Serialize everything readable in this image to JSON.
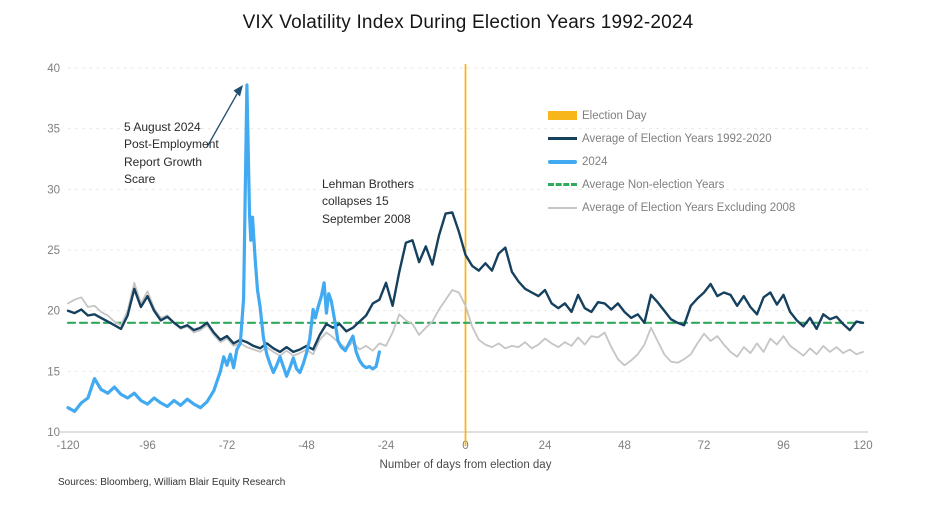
{
  "title": "VIX Volatility Index During Election Years 1992-2024",
  "source": "Sources: Bloomberg, William Blair Equity Research",
  "x_axis": {
    "label": "Number of days from election day"
  },
  "colors": {
    "navy": "#15405e",
    "blue": "#41aaf1",
    "green": "#2fa95c",
    "gray": "#c5c5c5",
    "gold": "#f7b71b",
    "grid": "#e9e9e9",
    "axis": "#c2c2c2",
    "tick_text": "#7f7f7f",
    "arrow": "#1f4e6e"
  },
  "legend": {
    "items": [
      {
        "label": "Election Day",
        "color_key": "gold",
        "swatch": "bar"
      },
      {
        "label": "Average of Election Years 1992-2020",
        "color_key": "navy",
        "swatch": "line"
      },
      {
        "label": "2024",
        "color_key": "blue",
        "swatch": "line-thick"
      },
      {
        "label": "Average Non-election Years",
        "color_key": "green",
        "swatch": "dash"
      },
      {
        "label": "Average of Election Years Excluding 2008",
        "color_key": "gray",
        "swatch": "line-thin"
      }
    ]
  },
  "annotations": {
    "growth_scare": {
      "text": "5 August 2024\nPost-Employment\nReport Growth\nScare"
    },
    "lehman": {
      "text": "Lehman Brothers\ncollapses 15\nSeptember 2008"
    }
  },
  "chart_data": {
    "type": "line",
    "title": "VIX Volatility Index During Election Years 1992-2024",
    "xlabel": "Number of days from election day",
    "ylabel": "",
    "xlim": [
      -120,
      120
    ],
    "ylim": [
      10,
      40
    ],
    "x_ticks": [
      -120,
      -96,
      -72,
      -48,
      -24,
      0,
      24,
      48,
      72,
      96,
      120
    ],
    "y_ticks": [
      10,
      15,
      20,
      25,
      30,
      35,
      40
    ],
    "grid": "horizontal-dashed",
    "legend_position": "upper-right-inside",
    "election_day_x": 0,
    "series": [
      {
        "name": "Average Non-election Years",
        "color_key": "green",
        "width": 2.2,
        "dash": "7 5",
        "points": [
          [
            -120,
            19.0
          ],
          [
            120,
            19.0
          ]
        ]
      },
      {
        "name": "Average of Election Years Excluding 2008",
        "color_key": "gray",
        "width": 1.8,
        "x_start": -120,
        "x_step": 2,
        "values": [
          20.6,
          20.9,
          21.1,
          20.3,
          20.4,
          19.9,
          19.6,
          19.1,
          18.8,
          20.0,
          22.3,
          20.6,
          21.6,
          20.2,
          19.4,
          19.6,
          19.0,
          18.5,
          18.7,
          18.2,
          18.4,
          18.8,
          18.0,
          17.4,
          17.7,
          17.1,
          17.3,
          17.0,
          16.8,
          16.6,
          17.0,
          16.6,
          16.3,
          16.7,
          16.3,
          16.5,
          16.8,
          16.4,
          17.6,
          18.2,
          17.8,
          17.3,
          16.9,
          17.4,
          16.8,
          17.1,
          16.7,
          17.3,
          17.1,
          18.2,
          19.7,
          19.2,
          18.9,
          18.0,
          18.6,
          19.1,
          20.1,
          20.9,
          21.7,
          21.5,
          20.4,
          18.7,
          17.6,
          17.2,
          17.0,
          17.3,
          16.9,
          17.1,
          17.0,
          17.4,
          16.9,
          17.2,
          17.7,
          17.3,
          17.0,
          17.4,
          17.1,
          17.8,
          17.2,
          17.9,
          17.8,
          18.2,
          17.0,
          16.0,
          15.5,
          15.9,
          16.4,
          17.2,
          18.6,
          17.5,
          16.4,
          15.8,
          15.7,
          16.0,
          16.4,
          17.3,
          18.1,
          17.5,
          17.9,
          17.2,
          16.6,
          16.2,
          17.0,
          16.5,
          17.3,
          16.6,
          17.7,
          17.2,
          17.9,
          17.1,
          16.7,
          16.3,
          16.9,
          16.4,
          17.1,
          16.6,
          17.0,
          16.5,
          16.8,
          16.4,
          16.6
        ]
      },
      {
        "name": "Average of Election Years 1992-2020",
        "color_key": "navy",
        "width": 2.4,
        "x_start": -120,
        "x_step": 2,
        "values": [
          20.0,
          19.8,
          20.1,
          19.6,
          19.7,
          19.4,
          19.1,
          18.8,
          18.5,
          19.6,
          21.8,
          20.3,
          21.2,
          20.0,
          19.2,
          19.5,
          19.0,
          18.6,
          18.8,
          18.4,
          18.6,
          19.0,
          18.2,
          17.6,
          17.9,
          17.3,
          17.6,
          17.4,
          17.1,
          16.9,
          17.3,
          16.9,
          16.6,
          17.0,
          16.6,
          16.8,
          17.1,
          16.8,
          18.0,
          18.9,
          18.6,
          18.9,
          18.3,
          18.6,
          19.1,
          19.6,
          20.6,
          20.9,
          22.3,
          20.4,
          23.2,
          25.6,
          25.8,
          24.0,
          25.3,
          23.8,
          26.2,
          28.0,
          28.1,
          26.5,
          24.6,
          23.7,
          23.3,
          23.9,
          23.3,
          24.7,
          25.2,
          23.2,
          22.4,
          21.8,
          21.5,
          21.2,
          21.7,
          20.6,
          20.2,
          20.6,
          19.9,
          21.3,
          20.2,
          19.9,
          20.7,
          20.6,
          20.1,
          20.6,
          19.9,
          19.4,
          19.7,
          19.0,
          21.3,
          20.7,
          20.0,
          19.3,
          19.0,
          18.8,
          20.4,
          21.0,
          21.5,
          22.2,
          21.2,
          21.5,
          21.3,
          20.4,
          21.2,
          20.3,
          19.7,
          21.1,
          21.5,
          20.5,
          21.3,
          19.9,
          19.2,
          18.7,
          19.4,
          18.5,
          19.7,
          19.3,
          19.5,
          18.9,
          18.4,
          19.1,
          19.0
        ]
      },
      {
        "name": "2024",
        "color_key": "blue",
        "width": 3.2,
        "points": [
          [
            -120,
            12.0
          ],
          [
            -118,
            11.7
          ],
          [
            -116,
            12.4
          ],
          [
            -114,
            12.8
          ],
          [
            -113,
            13.6
          ],
          [
            -112,
            14.4
          ],
          [
            -110,
            13.5
          ],
          [
            -108,
            13.2
          ],
          [
            -106,
            13.7
          ],
          [
            -104,
            13.1
          ],
          [
            -102,
            12.8
          ],
          [
            -100,
            13.2
          ],
          [
            -98,
            12.6
          ],
          [
            -96,
            12.3
          ],
          [
            -94,
            12.8
          ],
          [
            -92,
            12.4
          ],
          [
            -90,
            12.1
          ],
          [
            -88,
            12.6
          ],
          [
            -86,
            12.2
          ],
          [
            -84,
            12.7
          ],
          [
            -82,
            12.3
          ],
          [
            -80,
            12.0
          ],
          [
            -78,
            12.5
          ],
          [
            -76,
            13.4
          ],
          [
            -74,
            15.0
          ],
          [
            -73,
            16.2
          ],
          [
            -72,
            15.5
          ],
          [
            -71,
            16.4
          ],
          [
            -70,
            15.3
          ],
          [
            -69,
            16.8
          ],
          [
            -68,
            17.3
          ],
          [
            -67,
            21.0
          ],
          [
            -66,
            38.6
          ],
          [
            -65.2,
            28.0
          ],
          [
            -64.8,
            25.8
          ],
          [
            -64.3,
            27.7
          ],
          [
            -63.5,
            24.2
          ],
          [
            -62.8,
            21.7
          ],
          [
            -62,
            20.3
          ],
          [
            -61,
            17.8
          ],
          [
            -60,
            16.4
          ],
          [
            -59,
            15.6
          ],
          [
            -58,
            14.9
          ],
          [
            -57,
            15.5
          ],
          [
            -56,
            16.2
          ],
          [
            -55,
            15.4
          ],
          [
            -54,
            14.6
          ],
          [
            -53,
            15.3
          ],
          [
            -52,
            16.1
          ],
          [
            -51,
            15.2
          ],
          [
            -50,
            14.9
          ],
          [
            -49,
            15.6
          ],
          [
            -48,
            16.5
          ],
          [
            -47,
            17.7
          ],
          [
            -46,
            20.1
          ],
          [
            -45.3,
            19.4
          ],
          [
            -44.5,
            20.3
          ],
          [
            -43.5,
            21.2
          ],
          [
            -42.7,
            22.3
          ],
          [
            -42,
            19.8
          ],
          [
            -41.3,
            21.4
          ],
          [
            -40.5,
            20.8
          ],
          [
            -39.5,
            19.2
          ],
          [
            -38.5,
            17.5
          ],
          [
            -37.5,
            17.0
          ],
          [
            -36.3,
            16.7
          ],
          [
            -35,
            17.4
          ],
          [
            -34,
            17.9
          ],
          [
            -33,
            16.6
          ],
          [
            -32,
            15.9
          ],
          [
            -31,
            15.5
          ],
          [
            -30,
            15.3
          ],
          [
            -29,
            15.4
          ],
          [
            -28,
            15.2
          ],
          [
            -27,
            15.4
          ],
          [
            -26,
            16.6
          ]
        ]
      }
    ]
  }
}
